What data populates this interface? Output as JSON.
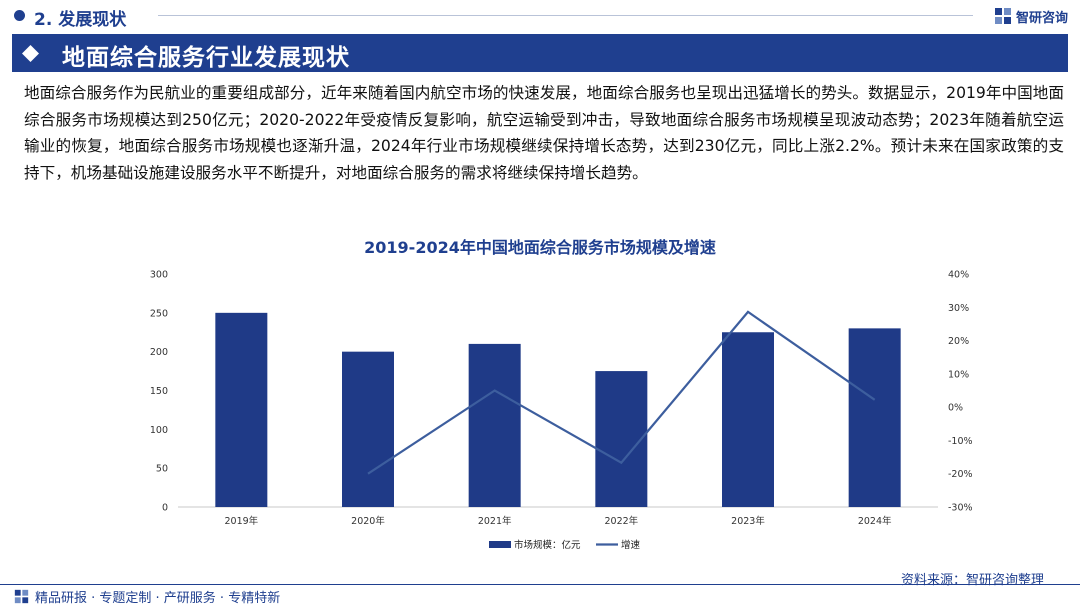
{
  "header": {
    "section_label": "2. 发展现状",
    "brand": "智研咨询",
    "title": "地面综合服务行业发展现状"
  },
  "body": {
    "paragraph": "地面综合服务作为民航业的重要组成部分，近年来随着国内航空市场的快速发展，地面综合服务也呈现出迅猛增长的势头。数据显示，2019年中国地面综合服务市场规模达到250亿元；2020-2022年受疫情反复影响，航空运输受到冲击，导致地面综合服务市场规模呈现波动态势；2023年随着航空运输业的恢复，地面综合服务市场规模也逐渐升温，2024年行业市场规模继续保持增长态势，达到230亿元，同比上涨2.2%。预计未来在国家政策的支持下，机场基础设施建设服务水平不断提升，对地面综合服务的需求将继续保持增长趋势。"
  },
  "colors": {
    "primary": "#1f3f8f",
    "bar": "#1f3a87",
    "line": "#3d5e9e"
  },
  "chart_data": {
    "type": "bar",
    "title": "2019-2024年中国地面综合服务市场规模及增速",
    "categories": [
      "2019年",
      "2020年",
      "2021年",
      "2022年",
      "2023年",
      "2024年"
    ],
    "series": [
      {
        "name": "市场规模：亿元",
        "type": "bar",
        "axis": "left",
        "values": [
          250,
          200,
          210,
          175,
          225,
          230
        ]
      },
      {
        "name": "增速",
        "type": "line",
        "axis": "right",
        "values": [
          null,
          -20.0,
          5.0,
          -16.7,
          28.6,
          2.2
        ]
      }
    ],
    "ylim_left": [
      0,
      300
    ],
    "yticks_left": [
      "0",
      "50",
      "100",
      "150",
      "200",
      "250",
      "300"
    ],
    "ylim_right": [
      -30,
      40
    ],
    "yticks_right": [
      "-30%",
      "-20%",
      "-10%",
      "0%",
      "10%",
      "20%",
      "30%",
      "40%"
    ],
    "legend": "bottom-center",
    "grid": false
  },
  "footer": {
    "tagline": "精品研报 · 专题定制 · 产研服务 · 专精特新",
    "source": "资料来源：智研咨询整理"
  }
}
